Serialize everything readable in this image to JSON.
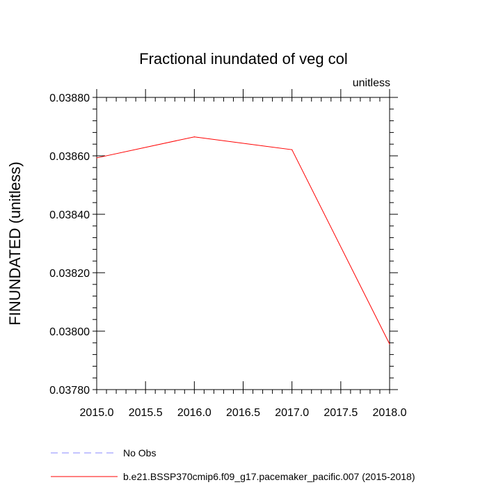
{
  "chart_data": {
    "type": "line",
    "title": "Fractional inundated of veg col",
    "units_label": "unitless",
    "ylabel": "FINUNDATED  (unitless)",
    "xlabel": "",
    "xlim": [
      2015.0,
      2018.0
    ],
    "ylim": [
      0.0378,
      0.0388
    ],
    "xticks": [
      "2015.0",
      "2015.5",
      "2016.0",
      "2016.5",
      "2017.0",
      "2017.5",
      "2018.0"
    ],
    "yticks": [
      "0.03780",
      "0.03800",
      "0.03820",
      "0.03840",
      "0.03860",
      "0.03880"
    ],
    "series": [
      {
        "name": "b.e21.BSSP370cmip6.f09_g17.pacemaker_pacific.007 (2015-2018)",
        "color": "#ff0000",
        "style": "solid",
        "x": [
          2015.0,
          2016.0,
          2017.0,
          2018.0
        ],
        "y": [
          0.038593,
          0.038665,
          0.038621,
          0.037956
        ]
      },
      {
        "name": "No Obs",
        "color": "#8a8aff",
        "style": "dashed",
        "x": [],
        "y": []
      }
    ],
    "grid": false,
    "legend_position": "bottom"
  }
}
